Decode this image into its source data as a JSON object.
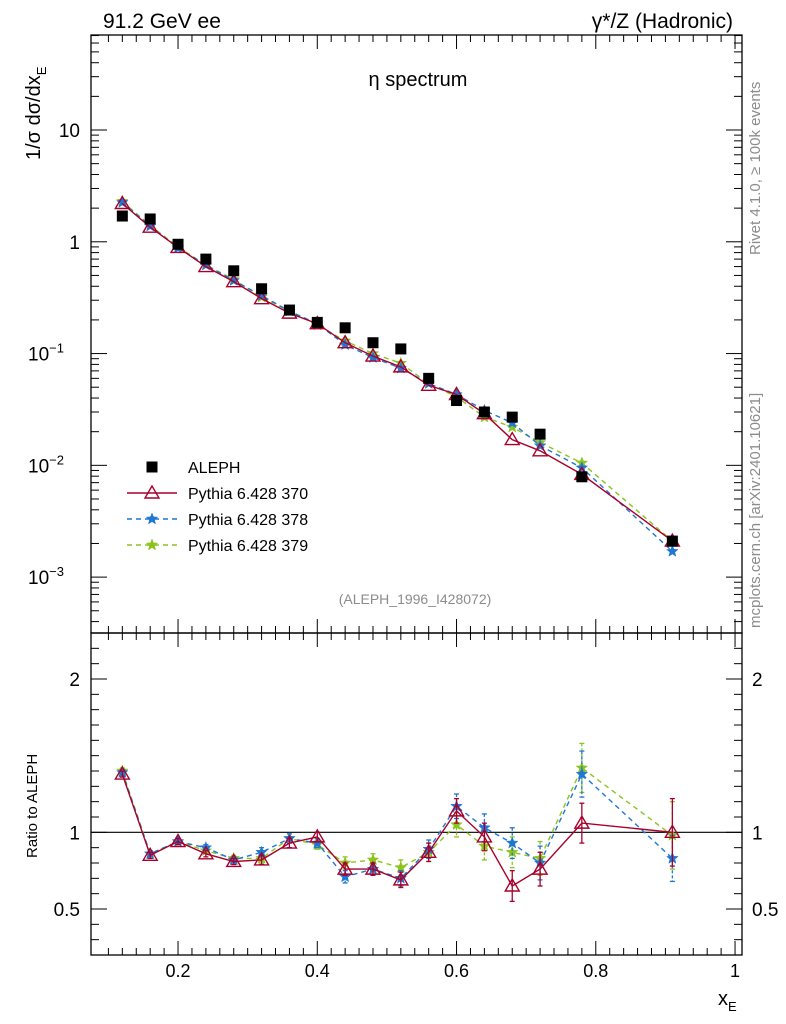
{
  "chart_data": {
    "type": "scatter",
    "header_left": "91.2 GeV ee",
    "header_right": "γ*/Z (Hadronic)",
    "title": "η spectrum",
    "ylabel_main": "1/σ  dσ/dx",
    "ylabel_main_sub": "E",
    "ylabel_ratio": "Ratio to ALEPH",
    "xlabel": "x",
    "xlabel_sub": "E",
    "side_label_top": "Rivet 4.1.0, ≥ 100k events",
    "side_label_bottom": "mcplots.cern.ch [arXiv:2401.10621]",
    "analysis_tag": "(ALEPH_1996_I428072)",
    "xlim": [
      0.075,
      1.01
    ],
    "ylim_main_log10": [
      -3.5,
      1.85
    ],
    "ylim_ratio": [
      0.2,
      2.3
    ],
    "x_ticks": [
      "0.2",
      "0.4",
      "0.6",
      "0.8",
      "1"
    ],
    "main_y_ticks": [
      {
        "label": "10",
        "exp": ""
      },
      {
        "label": "1",
        "exp": ""
      },
      {
        "label": "10",
        "exp": "−1"
      },
      {
        "label": "10",
        "exp": "−2"
      },
      {
        "label": "10",
        "exp": "−3"
      }
    ],
    "ratio_y_ticks": [
      "0.5",
      "1",
      "2"
    ],
    "x": [
      0.12,
      0.16,
      0.2,
      0.24,
      0.28,
      0.32,
      0.36,
      0.4,
      0.44,
      0.48,
      0.52,
      0.56,
      0.6,
      0.64,
      0.68,
      0.72,
      0.78,
      0.91
    ],
    "data": {
      "name": "ALEPH",
      "color": "#000000",
      "values": [
        1.7,
        1.6,
        0.95,
        0.7,
        0.55,
        0.38,
        0.245,
        0.19,
        0.17,
        0.125,
        0.11,
        0.06,
        0.038,
        0.03,
        0.027,
        0.019,
        0.0079,
        0.0021
      ]
    },
    "series": [
      {
        "name": "Pythia 6.428 370",
        "color": "#a8002c",
        "style": "solid",
        "marker": "triangle",
        "values": [
          2.2,
          1.35,
          0.89,
          0.6,
          0.44,
          0.31,
          0.23,
          0.185,
          0.125,
          0.095,
          0.076,
          0.052,
          0.043,
          0.029,
          0.017,
          0.0135,
          0.0083,
          0.0021
        ],
        "ratio": [
          1.38,
          0.85,
          0.94,
          0.86,
          0.81,
          0.82,
          0.93,
          0.97,
          0.76,
          0.76,
          0.69,
          0.87,
          1.14,
          0.97,
          0.65,
          0.76,
          1.06,
          1.0
        ],
        "ratio_err": [
          0.02,
          0.02,
          0.02,
          0.02,
          0.02,
          0.03,
          0.03,
          0.03,
          0.04,
          0.04,
          0.05,
          0.06,
          0.08,
          0.09,
          0.1,
          0.11,
          0.13,
          0.22
        ]
      },
      {
        "name": "Pythia 6.428 378",
        "color": "#1f77d4",
        "style": "dashed",
        "marker": "star",
        "values": [
          2.25,
          1.38,
          0.88,
          0.62,
          0.45,
          0.33,
          0.24,
          0.185,
          0.12,
          0.092,
          0.074,
          0.054,
          0.043,
          0.031,
          0.024,
          0.015,
          0.0095,
          0.0017
        ],
        "ratio": [
          1.39,
          0.86,
          0.94,
          0.9,
          0.82,
          0.87,
          0.96,
          0.93,
          0.71,
          0.76,
          0.7,
          0.89,
          1.17,
          1.03,
          0.93,
          0.8,
          1.38,
          0.83
        ],
        "ratio_err": [
          0.02,
          0.02,
          0.02,
          0.02,
          0.02,
          0.03,
          0.03,
          0.03,
          0.04,
          0.04,
          0.05,
          0.06,
          0.08,
          0.09,
          0.1,
          0.11,
          0.15,
          0.15
        ]
      },
      {
        "name": "Pythia 6.428 379",
        "color": "#8cc41f",
        "style": "dashed",
        "marker": "star",
        "values": [
          2.3,
          1.4,
          0.9,
          0.62,
          0.46,
          0.32,
          0.24,
          0.18,
          0.13,
          0.1,
          0.082,
          0.054,
          0.041,
          0.027,
          0.022,
          0.016,
          0.0105,
          0.0021
        ],
        "ratio": [
          1.4,
          0.86,
          0.94,
          0.88,
          0.83,
          0.83,
          0.96,
          0.92,
          0.8,
          0.82,
          0.77,
          0.87,
          1.05,
          0.91,
          0.87,
          0.83,
          1.42,
          0.98
        ],
        "ratio_err": [
          0.02,
          0.02,
          0.02,
          0.02,
          0.02,
          0.03,
          0.03,
          0.03,
          0.04,
          0.04,
          0.05,
          0.06,
          0.08,
          0.09,
          0.1,
          0.11,
          0.16,
          0.22
        ]
      }
    ]
  }
}
